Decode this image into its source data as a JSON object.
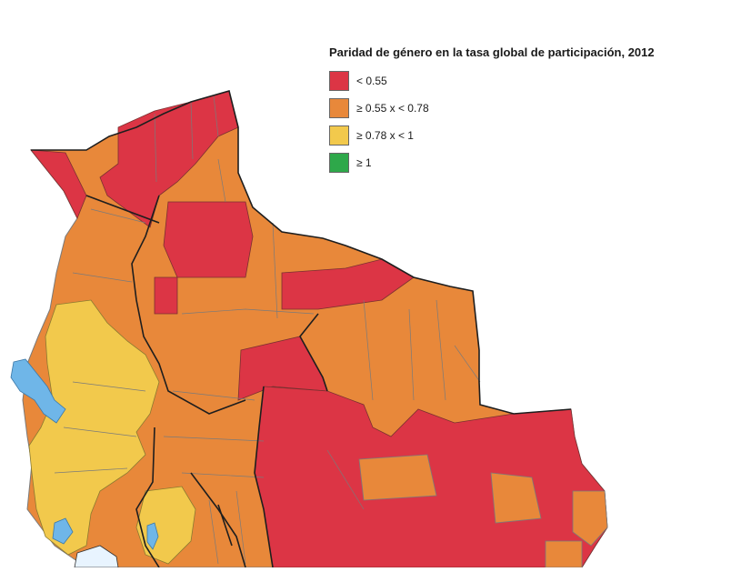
{
  "legend": {
    "title": "Paridad de género en la tasa global de participación, 2012",
    "items": [
      {
        "label": "< 0.55",
        "color": "#dc3545"
      },
      {
        "label": "≥ 0.55 x < 0.78",
        "color": "#e8883a"
      },
      {
        "label": "≥ 0.78 x < 1",
        "color": "#f2c94c"
      },
      {
        "label": "≥ 1",
        "color": "#2ea84a"
      }
    ]
  },
  "colors": {
    "red": "#dc3545",
    "orange": "#e8883a",
    "yellow": "#f2c94c",
    "green": "#2ea84a",
    "lake": "#6fb6e8",
    "border": "#3d3d3d"
  }
}
